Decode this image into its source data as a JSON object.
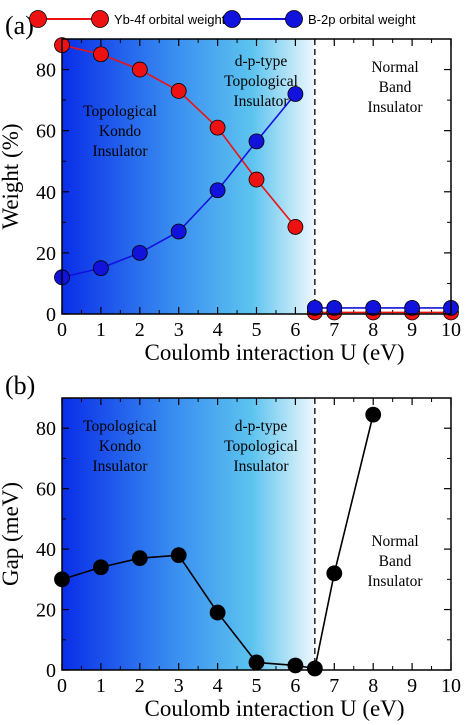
{
  "colors": {
    "red": "#ee1111",
    "blue": "#1212dd",
    "black": "#000000",
    "grad_dark": "#0a2ee8",
    "grad_mid": "#5cc3ef",
    "grad_light": "#eef8fc"
  },
  "chart_data": [
    {
      "type": "line",
      "panel_label": "(a)",
      "xlabel": "Coulomb interaction U (eV)",
      "ylabel": "Weight (%)",
      "xlim": [
        0,
        10
      ],
      "ylim": [
        0,
        90
      ],
      "xticks": [
        "0",
        "1",
        "2",
        "3",
        "4",
        "5",
        "6",
        "7",
        "8",
        "9",
        "10"
      ],
      "yticks": [
        "0",
        "20",
        "40",
        "60",
        "80"
      ],
      "legend_position": "top",
      "transition_U": 6.5,
      "series": [
        {
          "name": "Yb-4f orbital weight",
          "color": "#ee1111",
          "segments": [
            {
              "x": [
                0,
                1,
                2,
                3,
                4,
                5,
                6
              ],
              "y": [
                88,
                85,
                80,
                73,
                61,
                44,
                28.5
              ]
            },
            {
              "x": [
                6.5,
                7,
                8,
                9,
                10
              ],
              "y": [
                0.5,
                0.5,
                0.5,
                0.5,
                0.5
              ]
            }
          ]
        },
        {
          "name": "B-2p orbital weight",
          "color": "#1212dd",
          "segments": [
            {
              "x": [
                0,
                1,
                2,
                3,
                4,
                5,
                6
              ],
              "y": [
                12,
                15,
                20,
                27,
                40.5,
                56.5,
                72
              ]
            },
            {
              "x": [
                6.5,
                7,
                8,
                9,
                10
              ],
              "y": [
                2,
                2,
                2,
                2,
                2
              ]
            }
          ]
        }
      ],
      "region_labels": [
        {
          "lines": [
            "Topological",
            "Kondo",
            "Insulator"
          ]
        },
        {
          "lines": [
            "d-p-type",
            "Topological",
            "Insulator"
          ]
        },
        {
          "lines": [
            "Normal",
            "Band",
            "Insulator"
          ]
        }
      ]
    },
    {
      "type": "line",
      "panel_label": "(b)",
      "xlabel": "Coulomb interaction U (eV)",
      "ylabel": "Gap (meV)",
      "xlim": [
        0,
        10
      ],
      "ylim": [
        0,
        90
      ],
      "xticks": [
        "0",
        "1",
        "2",
        "3",
        "4",
        "5",
        "6",
        "7",
        "8",
        "9",
        "10"
      ],
      "yticks": [
        "0",
        "20",
        "40",
        "60",
        "80"
      ],
      "transition_U": 6.5,
      "series": [
        {
          "color": "#000000",
          "segments": [
            {
              "x": [
                0,
                1,
                2,
                3,
                4,
                5,
                6,
                6.5,
                7,
                8
              ],
              "y": [
                30,
                34,
                37,
                38,
                19,
                2.5,
                1.5,
                0.5,
                32,
                84.5
              ]
            }
          ]
        }
      ],
      "region_labels": [
        {
          "lines": [
            "Topological",
            "Kondo",
            "Insulator"
          ]
        },
        {
          "lines": [
            "d-p-type",
            "Topological",
            "Insulator"
          ]
        },
        {
          "lines": [
            "Normal",
            "Band",
            "Insulator"
          ]
        }
      ]
    }
  ]
}
